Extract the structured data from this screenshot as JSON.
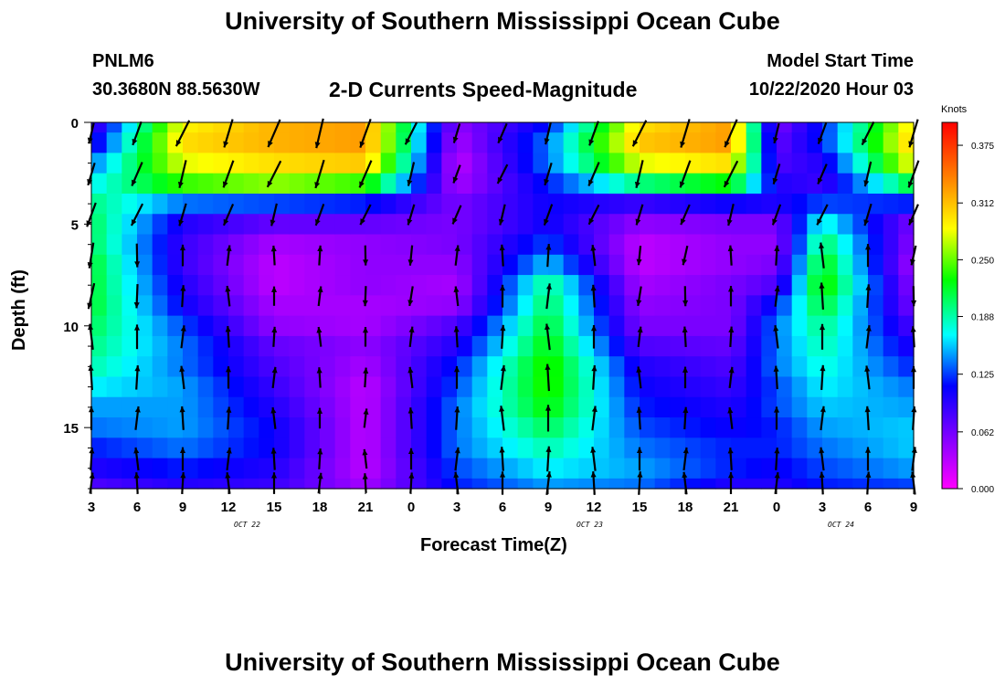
{
  "page": {
    "title": "University of Southern Mississippi Ocean Cube",
    "footer_title": "University of Southern Mississippi Ocean Cube",
    "station": "PNLM6",
    "location": "30.3680N 88.5630W",
    "subtitle": "2-D Currents Speed-Magnitude",
    "model_start_label": "Model Start Time",
    "model_start_value": "10/22/2020 Hour 03"
  },
  "chart_data": {
    "type": "heatmap",
    "title": "2-D Currents Speed-Magnitude",
    "xlabel": "Forecast Time(Z)",
    "ylabel": "Depth (ft)",
    "x_tick_labels": [
      "3",
      "6",
      "9",
      "12",
      "15",
      "18",
      "21",
      "0",
      "3",
      "6",
      "9",
      "12",
      "15",
      "18",
      "21",
      "0",
      "3",
      "6",
      "9"
    ],
    "date_labels": [
      "OCT 22",
      "OCT 23",
      "OCT 24"
    ],
    "forecast_hours": [
      3,
      57
    ],
    "y_ticks": [
      0,
      5,
      10,
      15
    ],
    "ylim": [
      0,
      18
    ],
    "y_inverted": true,
    "colorbar": {
      "label": "Knots",
      "ticks": [
        "0.375",
        "0.312",
        "0.250",
        "0.188",
        "0.125",
        "0.062",
        "0.000"
      ],
      "range": [
        0,
        0.4
      ],
      "colors": [
        "#ff00ff",
        "#8000ff",
        "#0000ff",
        "#00ffff",
        "#00ff00",
        "#ffff00",
        "#ff8000",
        "#ff0000"
      ]
    },
    "grid": false,
    "depth_profiles": {
      "depths": [
        0,
        1,
        2,
        3,
        4,
        5,
        6,
        7,
        8,
        9,
        10,
        11,
        12,
        13,
        14,
        15,
        16,
        17,
        18
      ],
      "keyframes": [
        {
          "x": 0,
          "v": [
            0.08,
            0.1,
            0.14,
            0.17,
            0.2,
            0.21,
            0.21,
            0.22,
            0.22,
            0.22,
            0.21,
            0.2,
            0.19,
            0.17,
            0.15,
            0.14,
            0.12,
            0.1,
            0.08
          ]
        },
        {
          "x": 2,
          "v": [
            0.29,
            0.3,
            0.28,
            0.24,
            0.14,
            0.1,
            0.09,
            0.09,
            0.1,
            0.11,
            0.13,
            0.14,
            0.14,
            0.15,
            0.15,
            0.15,
            0.14,
            0.12,
            0.1
          ]
        },
        {
          "x": 4,
          "v": [
            0.32,
            0.32,
            0.3,
            0.26,
            0.13,
            0.07,
            0.04,
            0.03,
            0.03,
            0.04,
            0.05,
            0.07,
            0.08,
            0.09,
            0.1,
            0.11,
            0.11,
            0.1,
            0.09
          ]
        },
        {
          "x": 6,
          "v": [
            0.33,
            0.33,
            0.31,
            0.24,
            0.12,
            0.07,
            0.05,
            0.05,
            0.05,
            0.04,
            0.04,
            0.05,
            0.04,
            0.03,
            0.03,
            0.03,
            0.03,
            0.03,
            0.04
          ]
        },
        {
          "x": 8,
          "v": [
            0.05,
            0.04,
            0.03,
            0.04,
            0.06,
            0.06,
            0.06,
            0.05,
            0.04,
            0.05,
            0.08,
            0.1,
            0.12,
            0.13,
            0.14,
            0.14,
            0.14,
            0.13,
            0.12
          ]
        },
        {
          "x": 10,
          "v": [
            0.12,
            0.14,
            0.14,
            0.12,
            0.11,
            0.11,
            0.13,
            0.16,
            0.2,
            0.21,
            0.22,
            0.23,
            0.24,
            0.24,
            0.23,
            0.21,
            0.19,
            0.17,
            0.15
          ]
        },
        {
          "x": 12,
          "v": [
            0.3,
            0.31,
            0.28,
            0.2,
            0.09,
            0.05,
            0.03,
            0.03,
            0.04,
            0.05,
            0.06,
            0.08,
            0.1,
            0.11,
            0.12,
            0.13,
            0.14,
            0.15,
            0.14
          ]
        },
        {
          "x": 14,
          "v": [
            0.33,
            0.33,
            0.3,
            0.23,
            0.11,
            0.06,
            0.05,
            0.05,
            0.06,
            0.06,
            0.06,
            0.07,
            0.08,
            0.09,
            0.1,
            0.11,
            0.12,
            0.12,
            0.1
          ]
        },
        {
          "x": 15,
          "v": [
            0.06,
            0.07,
            0.08,
            0.1,
            0.1,
            0.06,
            0.05,
            0.06,
            0.08,
            0.12,
            0.14,
            0.14,
            0.14,
            0.13,
            0.13,
            0.12,
            0.12,
            0.11,
            0.1
          ]
        },
        {
          "x": 16,
          "v": [
            0.12,
            0.12,
            0.1,
            0.09,
            0.13,
            0.18,
            0.21,
            0.23,
            0.24,
            0.22,
            0.2,
            0.19,
            0.18,
            0.17,
            0.16,
            0.15,
            0.14,
            0.13,
            0.12
          ]
        },
        {
          "x": 18,
          "v": [
            0.3,
            0.31,
            0.29,
            0.22,
            0.12,
            0.06,
            0.05,
            0.04,
            0.05,
            0.06,
            0.08,
            0.1,
            0.12,
            0.14,
            0.15,
            0.16,
            0.16,
            0.15,
            0.13
          ]
        }
      ]
    }
  }
}
